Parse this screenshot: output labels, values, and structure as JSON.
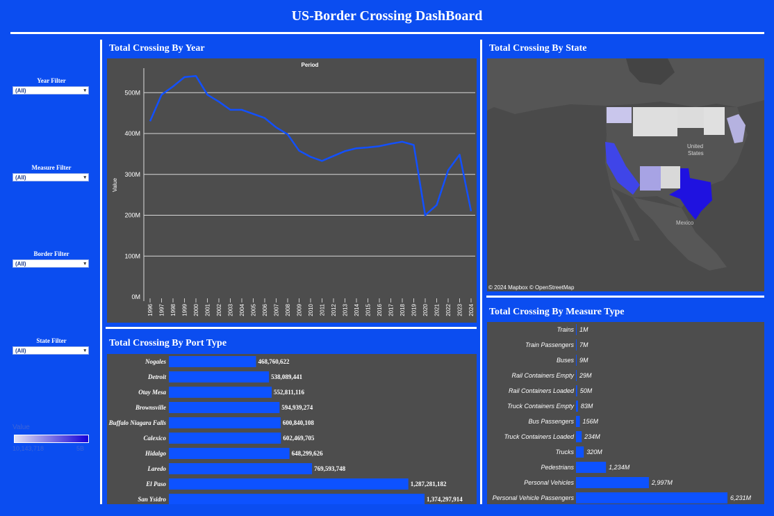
{
  "dashboard": {
    "title": "US-Border Crossing DashBoard"
  },
  "filters": [
    {
      "label": "Year Filter",
      "value": "(All)"
    },
    {
      "label": "Measure Filter",
      "value": "(All)"
    },
    {
      "label": "Border Filter",
      "value": "(All)"
    },
    {
      "label": "State Filter",
      "value": "(All)"
    }
  ],
  "legend": {
    "title": "Value",
    "min_label": "10,143,718",
    "max_label": "5B",
    "color_low": "#e4e4f4",
    "color_high": "#1400d8"
  },
  "panels": {
    "by_year": "Total Crossing By Year",
    "by_state": "Total Crossing By State",
    "by_port": "Total Crossing By Port Type",
    "by_measure": "Total Crossing By Measure Type"
  },
  "map": {
    "attribution": "© 2024 Mapbox © OpenStreetMap",
    "labels": [
      "United",
      "States",
      "Mexico"
    ],
    "background": "#4a4a4a"
  },
  "colors": {
    "accent": "#0b4df0",
    "panel": "#4d4d4d",
    "bar": "#0d52ff",
    "line": "#1250ff"
  },
  "chart_data": [
    {
      "type": "line",
      "title": "Period",
      "ylabel": "Value",
      "xlabel": "",
      "x": [
        "1996",
        "1997",
        "1998",
        "1999",
        "2000",
        "2001",
        "2002",
        "2003",
        "2004",
        "2005",
        "2006",
        "2007",
        "2008",
        "2009",
        "2010",
        "2011",
        "2012",
        "2013",
        "2014",
        "2015",
        "2016",
        "2017",
        "2018",
        "2019",
        "2020",
        "2021",
        "2022",
        "2023",
        "2024"
      ],
      "y_tick_labels": [
        "0M",
        "100M",
        "200M",
        "300M",
        "400M",
        "500M"
      ],
      "series": [
        {
          "values": [
            430,
            495,
            515,
            538,
            541,
            495,
            478,
            458,
            458,
            448,
            438,
            415,
            398,
            358,
            343,
            333,
            345,
            357,
            364,
            366,
            369,
            375,
            380,
            372,
            200,
            225,
            310,
            348,
            210
          ]
        }
      ],
      "ylim": [
        0,
        560
      ],
      "grid": true
    },
    {
      "type": "bar",
      "title": "",
      "orientation": "horizontal",
      "categories": [
        "Nogales",
        "Detroit",
        "Otay Mesa",
        "Brownsville",
        "Buffalo Niagara Falls",
        "Calexico",
        "Hidalgo",
        "Laredo",
        "El Paso",
        "San Ysidro"
      ],
      "values": [
        468760622,
        538089441,
        552811116,
        594939274,
        600840108,
        602469705,
        648299626,
        769593748,
        1287281182,
        1374297914
      ],
      "value_labels": [
        "468,760,622",
        "538,089,441",
        "552,811,116",
        "594,939,274",
        "600,840,108",
        "602,469,705",
        "648,299,626",
        "769,593,748",
        "1,287,281,182",
        "1,374,297,914"
      ]
    },
    {
      "type": "bar",
      "title": "",
      "orientation": "horizontal",
      "categories": [
        "Trains",
        "Train Passengers",
        "Buses",
        "Rail Containers Empty",
        "Rail Containers Loaded",
        "Truck Containers Empty",
        "Bus Passengers",
        "Truck Containers Loaded",
        "Trucks",
        "Pedestrians",
        "Personal Vehicles",
        "Personal Vehicle Passengers"
      ],
      "values": [
        1,
        7,
        9,
        29,
        50,
        83,
        156,
        234,
        320,
        1234,
        2997,
        6231
      ],
      "value_labels": [
        "1M",
        "7M",
        "9M",
        "29M",
        "50M",
        "83M",
        "156M",
        "234M",
        "320M",
        "1,234M",
        "2,997M",
        "6,231M"
      ]
    }
  ]
}
